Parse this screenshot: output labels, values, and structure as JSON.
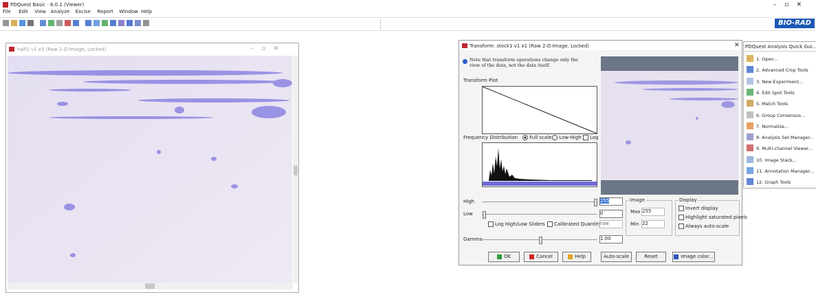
{
  "app": {
    "title": "PDQuest Basic - 8.0.1 (Viewer)",
    "menu": [
      "File",
      "Edit",
      "View",
      "Analyze",
      "Excise",
      "Report",
      "Window",
      "Help"
    ],
    "logo": "BIO-RAD"
  },
  "image_window": {
    "title": "half1 v1 x3 (Raw 2-D Image, Locked)"
  },
  "transform_dialog": {
    "title": "Transform: stock1 v1 x1 (Raw 2-D Image, Locked)",
    "note": "Note that transform operations change only the view of the data, not the data itself.",
    "transform_plot_label": "Transform Plot",
    "frequency_label": "Frequency Distribution",
    "scale_options": [
      "Full scale",
      "Low-High"
    ],
    "log_label": "Log",
    "high_label": "High",
    "high_value": "255",
    "low_label": "Low",
    "low_value": "0",
    "log_sliders_label": "Log High/Low Sliders",
    "calibrated_label": "Calibrated Quantity",
    "quantity_value": "raw",
    "gamma_label": "Gamma",
    "gamma_value": "1.00",
    "image_group": {
      "title": "Image",
      "max_label": "Max",
      "max_value": "255",
      "min_label": "Min",
      "min_value": "22"
    },
    "display_group": {
      "title": "Display",
      "options": [
        "Invert display",
        "Highlight saturated pixels",
        "Always auto-scale"
      ]
    },
    "buttons": [
      "OK",
      "Cancel",
      "Help",
      "Auto-scale",
      "Reset",
      "Image color..."
    ]
  },
  "quick_guide": {
    "title": "PDQuest Analysis Quick Gui...",
    "items": [
      "1. Open...",
      "2. Advanced Crop Tools",
      "3. New Experiment...",
      "4. Edit Spot Tools",
      "5. Match Tools",
      "6. Group Consensus...",
      "7. Normalize...",
      "8. Analysis Set Manager...",
      "9. Multi-channel Viewer...",
      "10. Image Stack...",
      "11. Annotation Manager...",
      "12. Graph Tools"
    ]
  }
}
